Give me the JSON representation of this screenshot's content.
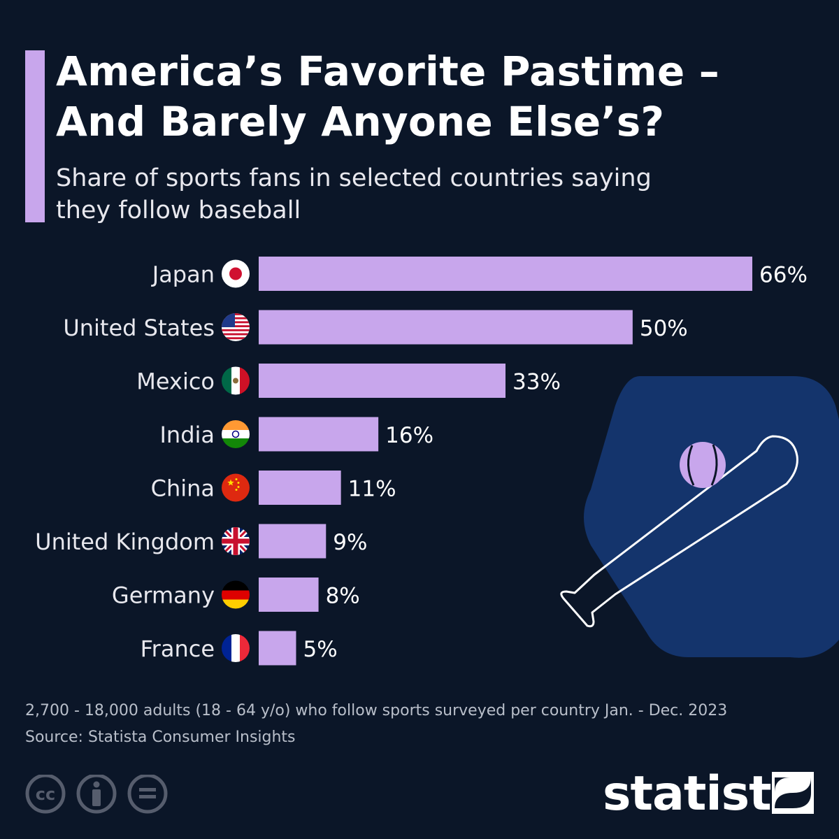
{
  "title_line1": "America’s Favorite Pastime –",
  "title_line2": "And Barely Anyone Else’s?",
  "subtitle_line1": "Share of sports fans in selected countries saying",
  "subtitle_line2": "they follow baseball",
  "chart_data": {
    "type": "bar",
    "orientation": "horizontal",
    "categories": [
      "Japan",
      "United States",
      "Mexico",
      "India",
      "China",
      "United Kingdom",
      "Germany",
      "France"
    ],
    "values": [
      66,
      50,
      33,
      16,
      11,
      9,
      8,
      5
    ],
    "value_labels": [
      "66%",
      "50%",
      "33%",
      "16%",
      "11%",
      "9%",
      "8%",
      "5%"
    ],
    "unit": "%",
    "xlim": [
      0,
      66
    ],
    "grid": false,
    "legend": "none",
    "colors": {
      "bar": "#c8a6ec",
      "background": "#0b1628"
    }
  },
  "footnote": "2,700 - 18,000 adults (18 - 64 y/o) who follow sports surveyed per country Jan. - Dec. 2023",
  "source": "Source: Statista Consumer Insights",
  "brand": "statista",
  "icons": [
    "flag-japan-icon",
    "flag-usa-icon",
    "flag-mexico-icon",
    "flag-india-icon",
    "flag-china-icon",
    "flag-uk-icon",
    "flag-germany-icon",
    "flag-france-icon",
    "baseball-bat-icon",
    "baseball-icon",
    "cc-icon",
    "attribution-icon",
    "no-derivatives-icon",
    "statista-logo-icon"
  ]
}
